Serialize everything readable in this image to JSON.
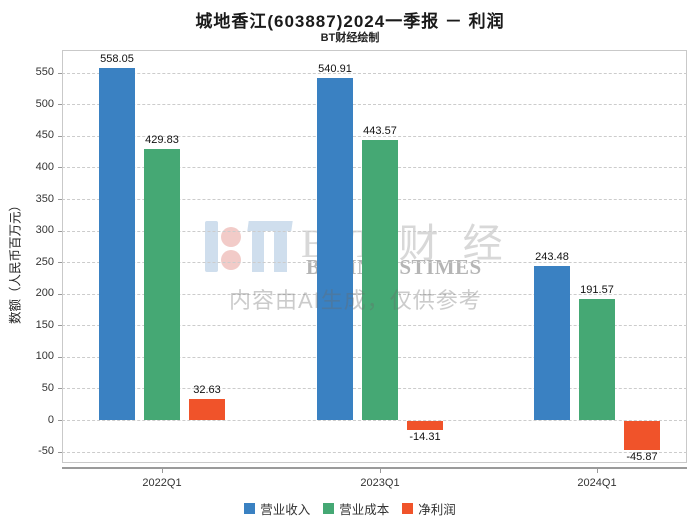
{
  "header": {
    "title": "城地香江(603887)2024一季报 － 利润",
    "subtitle": "BT财经绘制"
  },
  "chart_data": {
    "type": "bar",
    "categories": [
      "2022Q1",
      "2023Q1",
      "2024Q1"
    ],
    "series": [
      {
        "name": "营业收入",
        "color": "#3a81c2",
        "values": [
          558.05,
          540.91,
          243.48
        ]
      },
      {
        "name": "营业成本",
        "color": "#45a874",
        "values": [
          429.83,
          443.57,
          191.57
        ]
      },
      {
        "name": "净利润",
        "color": "#f0532a",
        "values": [
          32.63,
          -14.31,
          -45.87
        ]
      }
    ],
    "title": "城地香江(603887)2024一季报 － 利润",
    "xlabel": "",
    "ylabel": "数额（人民币百万元）",
    "ylim": [
      -68,
      586
    ],
    "yticks": [
      550,
      500,
      450,
      400,
      350,
      300,
      250,
      200,
      150,
      100,
      50,
      0,
      -50
    ],
    "grid": "horizontal-dashed",
    "legend_position": "bottom"
  },
  "watermark": {
    "brand_cn": "B T 财 经",
    "brand_en": "BUSINESSTIMES",
    "disclaimer": "内容由AI生成，仅供参考"
  }
}
